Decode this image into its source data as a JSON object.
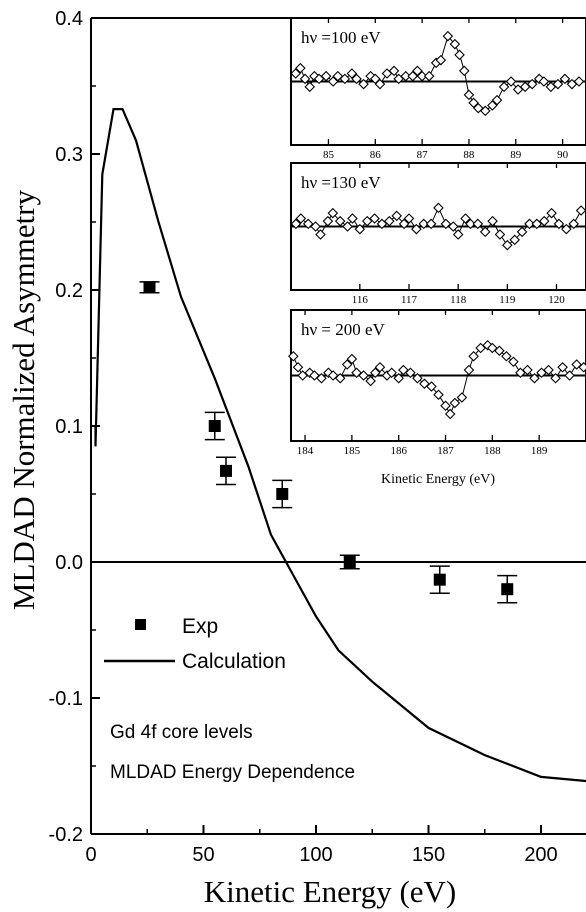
{
  "chart_data": {
    "type": "scatter",
    "xlabel": "Kinetic Energy (eV)",
    "ylabel": "MLDAD Normalized Asymmetry",
    "xlim": [
      0,
      220
    ],
    "ylim": [
      -0.2,
      0.4
    ],
    "xticks": [
      "0",
      "50",
      "100",
      "150",
      "200"
    ],
    "yticks": [
      "-0.2",
      "-0.1",
      "0.0",
      "0.1",
      "0.2",
      "0.3",
      "0.4"
    ],
    "grid": false,
    "zero_line": true,
    "legend": {
      "position": "lower-left",
      "entries": [
        "Exp",
        "Calculation"
      ]
    },
    "annotations": [
      "Gd 4f core levels",
      "MLDAD Energy Dependence"
    ],
    "series": [
      {
        "name": "Exp",
        "type": "scatter",
        "marker": "filled-square",
        "error_bars": true,
        "points": [
          {
            "x": 26,
            "y": 0.202,
            "err": 0.004
          },
          {
            "x": 55,
            "y": 0.1,
            "err": 0.01
          },
          {
            "x": 60,
            "y": 0.067,
            "err": 0.01
          },
          {
            "x": 85,
            "y": 0.05,
            "err": 0.01
          },
          {
            "x": 115,
            "y": 0.0,
            "err": 0.005
          },
          {
            "x": 155,
            "y": -0.013,
            "err": 0.01
          },
          {
            "x": 185,
            "y": -0.02,
            "err": 0.01
          }
        ]
      },
      {
        "name": "Calculation",
        "type": "line",
        "points": [
          {
            "x": 2,
            "y": 0.1
          },
          {
            "x": 2,
            "y": 0.085
          },
          {
            "x": 5,
            "y": 0.285
          },
          {
            "x": 10,
            "y": 0.333
          },
          {
            "x": 14,
            "y": 0.333
          },
          {
            "x": 20,
            "y": 0.31
          },
          {
            "x": 30,
            "y": 0.25
          },
          {
            "x": 40,
            "y": 0.195
          },
          {
            "x": 55,
            "y": 0.135
          },
          {
            "x": 70,
            "y": 0.07
          },
          {
            "x": 80,
            "y": 0.02
          },
          {
            "x": 90,
            "y": -0.01
          },
          {
            "x": 100,
            "y": -0.04
          },
          {
            "x": 110,
            "y": -0.065
          },
          {
            "x": 125,
            "y": -0.088
          },
          {
            "x": 150,
            "y": -0.122
          },
          {
            "x": 175,
            "y": -0.142
          },
          {
            "x": 200,
            "y": -0.158
          },
          {
            "x": 220,
            "y": -0.161
          }
        ]
      }
    ],
    "insets": [
      {
        "label": "hν =100 eV",
        "xlim": [
          84.2,
          90.5
        ],
        "xticks": [
          85,
          86,
          87,
          88,
          89,
          90
        ],
        "baseline": 0.0,
        "ylim": [
          -1,
          1
        ],
        "points": [
          [
            84.3,
            0.15
          ],
          [
            84.4,
            0.25
          ],
          [
            84.5,
            0.05
          ],
          [
            84.6,
            -0.1
          ],
          [
            84.7,
            0.1
          ],
          [
            84.8,
            0.05
          ],
          [
            84.95,
            0.1
          ],
          [
            85.1,
            0.0
          ],
          [
            85.2,
            0.1
          ],
          [
            85.35,
            0.05
          ],
          [
            85.5,
            0.15
          ],
          [
            85.6,
            0.05
          ],
          [
            85.75,
            -0.05
          ],
          [
            85.9,
            0.1
          ],
          [
            86.0,
            0.05
          ],
          [
            86.1,
            -0.05
          ],
          [
            86.25,
            0.15
          ],
          [
            86.4,
            0.2
          ],
          [
            86.5,
            0.05
          ],
          [
            86.65,
            0.1
          ],
          [
            86.8,
            0.1
          ],
          [
            86.9,
            0.2
          ],
          [
            87.0,
            0.1
          ],
          [
            87.15,
            0.1
          ],
          [
            87.3,
            0.35
          ],
          [
            87.4,
            0.4
          ],
          [
            87.55,
            0.85
          ],
          [
            87.7,
            0.7
          ],
          [
            87.8,
            0.5
          ],
          [
            87.9,
            0.2
          ],
          [
            88.0,
            -0.25
          ],
          [
            88.1,
            -0.4
          ],
          [
            88.2,
            -0.5
          ],
          [
            88.35,
            -0.55
          ],
          [
            88.5,
            -0.45
          ],
          [
            88.6,
            -0.35
          ],
          [
            88.75,
            -0.1
          ],
          [
            88.9,
            0.0
          ],
          [
            89.05,
            -0.15
          ],
          [
            89.2,
            -0.1
          ],
          [
            89.35,
            -0.05
          ],
          [
            89.5,
            0.05
          ],
          [
            89.6,
            0.0
          ],
          [
            89.75,
            -0.1
          ],
          [
            89.9,
            -0.05
          ],
          [
            90.05,
            0.05
          ],
          [
            90.2,
            -0.05
          ],
          [
            90.35,
            0.0
          ]
        ]
      },
      {
        "label": "hν =130 eV",
        "xlim": [
          114.6,
          120.6
        ],
        "xticks": [
          116,
          117,
          118,
          119,
          120
        ],
        "baseline": 0.0,
        "ylim": [
          -1,
          1
        ],
        "points": [
          [
            114.7,
            0.05
          ],
          [
            114.8,
            0.15
          ],
          [
            114.95,
            0.05
          ],
          [
            115.1,
            0.0
          ],
          [
            115.2,
            -0.15
          ],
          [
            115.35,
            0.1
          ],
          [
            115.45,
            0.25
          ],
          [
            115.6,
            0.1
          ],
          [
            115.75,
            0.0
          ],
          [
            115.85,
            0.15
          ],
          [
            116.0,
            -0.05
          ],
          [
            116.15,
            0.1
          ],
          [
            116.3,
            0.15
          ],
          [
            116.45,
            0.05
          ],
          [
            116.6,
            0.1
          ],
          [
            116.75,
            0.2
          ],
          [
            116.9,
            0.05
          ],
          [
            117.0,
            0.15
          ],
          [
            117.15,
            -0.05
          ],
          [
            117.3,
            0.05
          ],
          [
            117.45,
            0.05
          ],
          [
            117.6,
            0.35
          ],
          [
            117.75,
            0.05
          ],
          [
            117.9,
            0.0
          ],
          [
            118.0,
            -0.15
          ],
          [
            118.15,
            0.15
          ],
          [
            118.25,
            0.05
          ],
          [
            118.4,
            0.05
          ],
          [
            118.55,
            -0.1
          ],
          [
            118.7,
            0.1
          ],
          [
            118.85,
            -0.15
          ],
          [
            119.0,
            -0.35
          ],
          [
            119.15,
            -0.25
          ],
          [
            119.3,
            -0.1
          ],
          [
            119.45,
            0.05
          ],
          [
            119.6,
            0.05
          ],
          [
            119.75,
            0.1
          ],
          [
            119.9,
            0.25
          ],
          [
            120.05,
            0.05
          ],
          [
            120.2,
            -0.05
          ],
          [
            120.35,
            0.05
          ],
          [
            120.5,
            0.3
          ]
        ]
      },
      {
        "label": "hν = 200 eV",
        "xlim": [
          183.7,
          190.0
        ],
        "xticks": [
          184,
          185,
          186,
          187,
          188,
          189
        ],
        "baseline": 0.0,
        "ylim": [
          -1,
          1
        ],
        "points": [
          [
            183.75,
            0.35
          ],
          [
            183.85,
            0.15
          ],
          [
            183.95,
            0.0
          ],
          [
            184.1,
            0.05
          ],
          [
            184.2,
            0.0
          ],
          [
            184.35,
            -0.05
          ],
          [
            184.5,
            0.05
          ],
          [
            184.6,
            0.0
          ],
          [
            184.75,
            -0.05
          ],
          [
            184.9,
            0.2
          ],
          [
            185.0,
            0.3
          ],
          [
            185.1,
            0.05
          ],
          [
            185.25,
            0.0
          ],
          [
            185.4,
            -0.1
          ],
          [
            185.5,
            0.05
          ],
          [
            185.6,
            0.15
          ],
          [
            185.75,
            0.0
          ],
          [
            185.85,
            0.05
          ],
          [
            186.0,
            -0.05
          ],
          [
            186.1,
            0.1
          ],
          [
            186.25,
            0.05
          ],
          [
            186.4,
            -0.05
          ],
          [
            186.55,
            -0.15
          ],
          [
            186.7,
            -0.2
          ],
          [
            186.85,
            -0.35
          ],
          [
            187.0,
            -0.55
          ],
          [
            187.1,
            -0.7
          ],
          [
            187.2,
            -0.5
          ],
          [
            187.35,
            -0.4
          ],
          [
            187.5,
            0.1
          ],
          [
            187.6,
            0.35
          ],
          [
            187.75,
            0.5
          ],
          [
            187.9,
            0.55
          ],
          [
            188.0,
            0.5
          ],
          [
            188.15,
            0.45
          ],
          [
            188.3,
            0.35
          ],
          [
            188.45,
            0.25
          ],
          [
            188.6,
            0.05
          ],
          [
            188.75,
            0.1
          ],
          [
            188.9,
            -0.05
          ],
          [
            189.05,
            0.05
          ],
          [
            189.2,
            0.1
          ],
          [
            189.35,
            -0.05
          ],
          [
            189.5,
            0.15
          ],
          [
            189.65,
            0.0
          ],
          [
            189.8,
            0.2
          ],
          [
            189.95,
            0.15
          ]
        ]
      }
    ],
    "inset_xlabel": "Kinetic Energy (eV)"
  },
  "labels": {
    "xlabel": "Kinetic Energy (eV)",
    "ylabel": "MLDAD Normalized Asymmetry",
    "legend_exp": "Exp",
    "legend_calc": "Calculation",
    "note1": "Gd 4f core levels",
    "note2": "MLDAD Energy Dependence",
    "inset_xlabel": "Kinetic Energy (eV)",
    "inset1_label": "hν =100 eV",
    "inset2_label": "hν =130 eV",
    "inset3_label": "hν = 200 eV"
  }
}
